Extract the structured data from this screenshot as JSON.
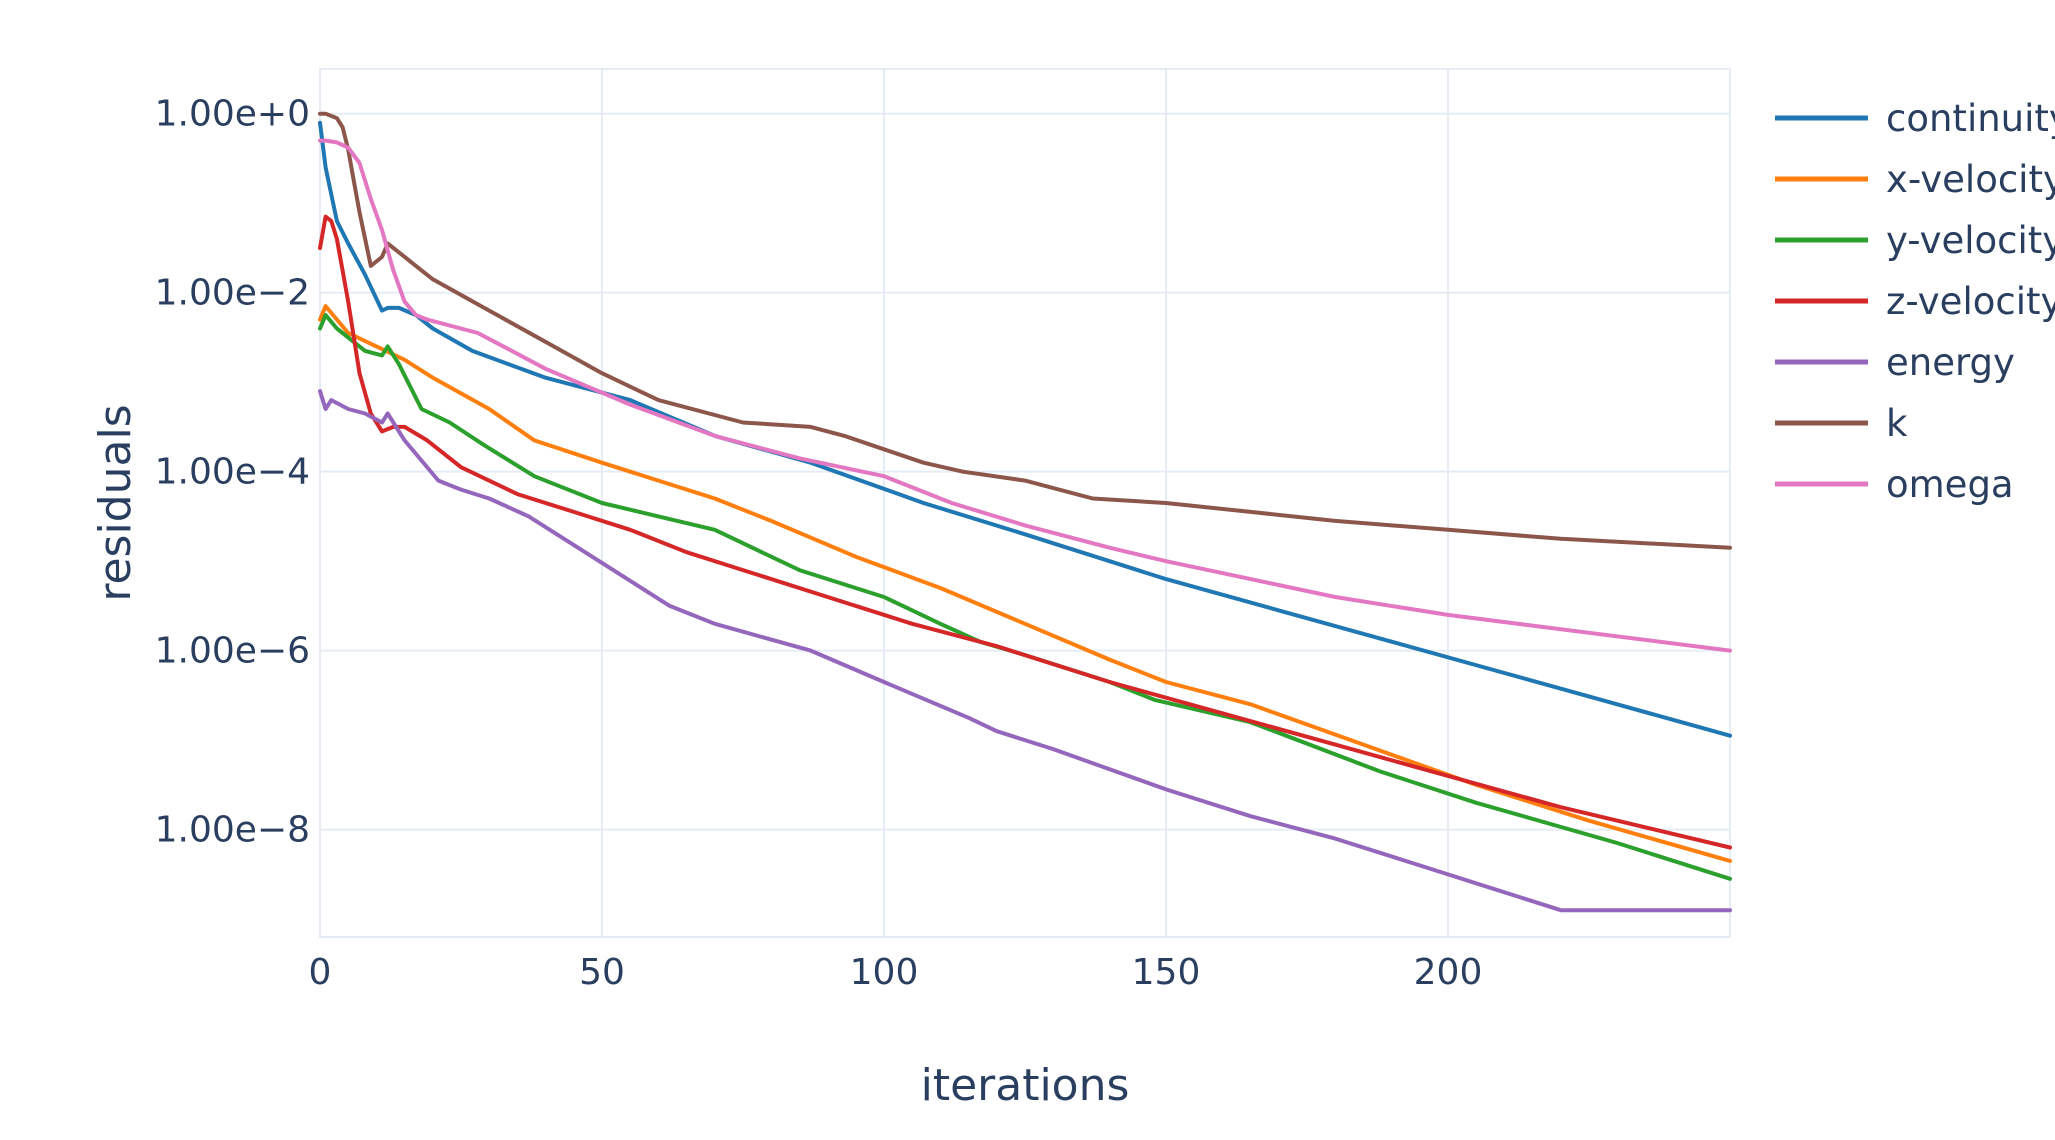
{
  "chart_data": {
    "type": "line",
    "title": "",
    "xlabel": "iterations",
    "ylabel": "residuals",
    "xlim": [
      0,
      250
    ],
    "xticks": [
      0,
      50,
      100,
      150,
      200
    ],
    "xtick_labels": [
      "0",
      "50",
      "100",
      "150",
      "200"
    ],
    "yscale": "log",
    "ylim_log10": [
      -9.2,
      0.5
    ],
    "yticks_log10": [
      0,
      -2,
      -4,
      -6,
      -8
    ],
    "ytick_labels": [
      "1.00e+0",
      "1.00e−2",
      "1.00e−4",
      "1.00e−6",
      "1.00e−8"
    ],
    "grid": true,
    "legend_position": "right",
    "series": [
      {
        "name": "continuity",
        "color": "#1f77b4",
        "x": [
          0,
          1,
          3,
          5,
          8,
          11,
          12,
          14,
          17,
          20,
          27,
          40,
          55,
          70,
          87,
          107,
          125,
          140,
          150,
          170,
          190,
          210,
          230,
          250
        ],
        "y_log10": [
          -0.1,
          -0.6,
          -1.2,
          -1.45,
          -1.8,
          -2.2,
          -2.17,
          -2.17,
          -2.25,
          -2.4,
          -2.65,
          -2.95,
          -3.2,
          -3.6,
          -3.9,
          -4.35,
          -4.7,
          -5.0,
          -5.2,
          -5.55,
          -5.9,
          -6.25,
          -6.6,
          -6.95
        ]
      },
      {
        "name": "x-velocity",
        "color": "#ff7f0e",
        "x": [
          0,
          1,
          3,
          5,
          10,
          15,
          20,
          30,
          38,
          50,
          60,
          70,
          80,
          95,
          110,
          125,
          140,
          150,
          165,
          185,
          205,
          225,
          250
        ],
        "y_log10": [
          -2.3,
          -2.15,
          -2.3,
          -2.45,
          -2.6,
          -2.75,
          -2.95,
          -3.3,
          -3.65,
          -3.9,
          -4.1,
          -4.3,
          -4.55,
          -4.95,
          -5.3,
          -5.7,
          -6.1,
          -6.35,
          -6.6,
          -7.05,
          -7.5,
          -7.9,
          -8.35
        ]
      },
      {
        "name": "y-velocity",
        "color": "#2ca02c",
        "x": [
          0,
          1,
          3,
          5,
          8,
          11,
          12,
          14,
          18,
          23,
          29,
          38,
          50,
          60,
          70,
          85,
          100,
          110,
          117,
          125,
          140,
          148,
          165,
          188,
          205,
          230,
          250
        ],
        "y_log10": [
          -2.4,
          -2.25,
          -2.4,
          -2.5,
          -2.65,
          -2.7,
          -2.6,
          -2.8,
          -3.3,
          -3.45,
          -3.7,
          -4.05,
          -4.35,
          -4.5,
          -4.65,
          -5.1,
          -5.4,
          -5.7,
          -5.9,
          -6.05,
          -6.35,
          -6.55,
          -6.8,
          -7.35,
          -7.7,
          -8.15,
          -8.55
        ]
      },
      {
        "name": "z-velocity",
        "color": "#d62728",
        "x": [
          0,
          1,
          2,
          3,
          5,
          7,
          9,
          11,
          13,
          15,
          19,
          25,
          35,
          45,
          55,
          65,
          75,
          90,
          105,
          120,
          140,
          160,
          180,
          200,
          220,
          250
        ],
        "y_log10": [
          -1.5,
          -1.15,
          -1.2,
          -1.4,
          -2.1,
          -2.9,
          -3.35,
          -3.55,
          -3.5,
          -3.5,
          -3.65,
          -3.95,
          -4.25,
          -4.45,
          -4.65,
          -4.9,
          -5.1,
          -5.4,
          -5.7,
          -5.95,
          -6.35,
          -6.7,
          -7.05,
          -7.4,
          -7.75,
          -8.2
        ]
      },
      {
        "name": "energy",
        "color": "#9467bd",
        "x": [
          0,
          1,
          2,
          5,
          8,
          11,
          12,
          15,
          21,
          25,
          30,
          37,
          47,
          62,
          70,
          87,
          100,
          115,
          120,
          130,
          150,
          165,
          180,
          200,
          220,
          250
        ],
        "y_log10": [
          -3.1,
          -3.3,
          -3.2,
          -3.3,
          -3.35,
          -3.45,
          -3.35,
          -3.65,
          -4.1,
          -4.2,
          -4.3,
          -4.5,
          -4.9,
          -5.5,
          -5.7,
          -6.0,
          -6.35,
          -6.75,
          -6.9,
          -7.1,
          -7.55,
          -7.85,
          -8.1,
          -8.5,
          -8.9,
          -8.9
        ]
      },
      {
        "name": "k",
        "color": "#8c564b",
        "x": [
          0,
          1,
          3,
          4,
          5,
          6,
          7,
          9,
          11,
          12,
          14,
          17,
          20,
          30,
          40,
          50,
          60,
          75,
          87,
          93,
          100,
          107,
          114,
          125,
          137,
          150,
          165,
          180,
          200,
          220,
          250
        ],
        "y_log10": [
          0.0,
          0.0,
          -0.05,
          -0.15,
          -0.4,
          -0.75,
          -1.1,
          -1.7,
          -1.6,
          -1.45,
          -1.55,
          -1.7,
          -1.85,
          -2.2,
          -2.55,
          -2.9,
          -3.2,
          -3.45,
          -3.5,
          -3.6,
          -3.75,
          -3.9,
          -4.0,
          -4.1,
          -4.3,
          -4.35,
          -4.45,
          -4.55,
          -4.65,
          -4.75,
          -4.85
        ]
      },
      {
        "name": "omega",
        "color": "#e377c2",
        "x": [
          0,
          1,
          3,
          5,
          7,
          9,
          11,
          13,
          15,
          17,
          19,
          28,
          40,
          55,
          70,
          85,
          100,
          112,
          125,
          140,
          150,
          165,
          180,
          200,
          225,
          250
        ],
        "y_log10": [
          -0.3,
          -0.3,
          -0.32,
          -0.38,
          -0.55,
          -0.95,
          -1.3,
          -1.75,
          -2.1,
          -2.25,
          -2.3,
          -2.45,
          -2.85,
          -3.25,
          -3.6,
          -3.85,
          -4.05,
          -4.35,
          -4.6,
          -4.85,
          -5.0,
          -5.2,
          -5.4,
          -5.6,
          -5.8,
          -6.0
        ]
      }
    ]
  }
}
